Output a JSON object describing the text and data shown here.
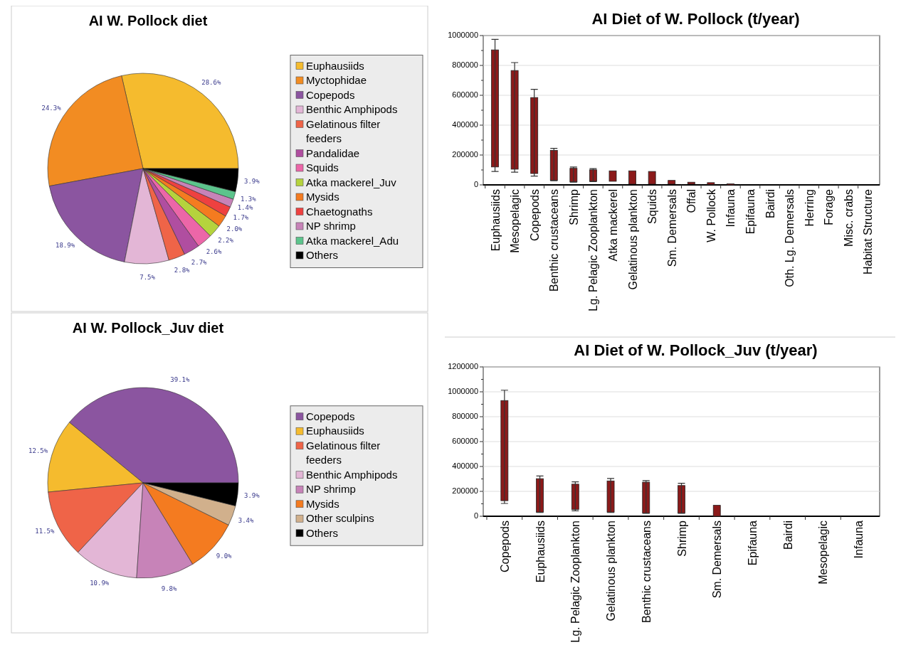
{
  "chart_data": [
    {
      "type": "pie",
      "title": "AI W. Pollock diet",
      "legend": "right",
      "categories": [
        "Euphausiids",
        "Myctophidae",
        "Copepods",
        "Benthic Amphipods",
        "Gelatinous filter feeders",
        "Pandalidae",
        "Squids",
        "Atka mackerel_Juv",
        "Mysids",
        "Chaetognaths",
        "NP shrimp",
        "Atka mackerel_Adu",
        "Others"
      ],
      "values": [
        28.6,
        24.3,
        18.9,
        7.5,
        2.8,
        2.7,
        2.6,
        2.2,
        2.0,
        1.7,
        1.4,
        1.3,
        3.9
      ],
      "value_labels": [
        "28.6%",
        "24.3%",
        "18.9%",
        "7.5%",
        "2.8%",
        "2.7%",
        "2.6%",
        "2.2%",
        "2.0%",
        "1.7%",
        "1.4%",
        "1.3%",
        "3.9%"
      ],
      "colors": [
        "#f5bb2e",
        "#f28c22",
        "#8b55a0",
        "#e3b6d6",
        "#ef6448",
        "#b04ea0",
        "#ec66a8",
        "#b5d33d",
        "#f47b20",
        "#ee4140",
        "#c783b8",
        "#5cc48c",
        "#000000"
      ]
    },
    {
      "type": "bar",
      "title": "AI Diet of W. Pollock (t/year)",
      "grid": "y",
      "color": "#8b1a1a",
      "categories": [
        "Euphausiids",
        "Mesopelagic",
        "Copepods",
        "Benthic crustaceans",
        "Shrimp",
        "Lg. Pelagic Zooplankton",
        "Atka mackerel",
        "Gelatinous plankton",
        "Squids",
        "Sm. Demersals",
        "Offal",
        "W. Pollock",
        "Infauna",
        "Epifauna",
        "Bairdi",
        "Oth. Lg. Demersals",
        "Herring",
        "Forage",
        "Misc. crabs",
        "Habitat Structure"
      ],
      "base": [
        120000,
        105000,
        76000,
        30000,
        20000,
        24000,
        24000,
        5000,
        5000,
        5000,
        5000,
        2000,
        0,
        null,
        null,
        null,
        null,
        null,
        null,
        null
      ],
      "values": [
        784000,
        661000,
        509000,
        201000,
        91000,
        77000,
        70000,
        89000,
        85000,
        25000,
        13000,
        13000,
        7000,
        0,
        0,
        0,
        0,
        0,
        0,
        0
      ],
      "errors": [
        [
          90000,
          974000
        ],
        [
          85000,
          819000
        ],
        [
          59000,
          640000
        ],
        [
          28000,
          245000
        ],
        [
          18000,
          120000
        ],
        [
          22000,
          109000
        ],
        null,
        null,
        null,
        null,
        null,
        null,
        null,
        null,
        null,
        null,
        null,
        null,
        null,
        null
      ],
      "ylim": [
        0,
        1000000
      ],
      "yticks": [
        0,
        {
          "value": 100000,
          "label": null
        },
        200000,
        {
          "value": 300000,
          "label": null
        },
        400000,
        {
          "value": 500000,
          "label": null
        },
        600000,
        {
          "value": 700000,
          "label": null
        },
        800000,
        {
          "value": 900000,
          "label": null
        },
        1000000
      ]
    },
    {
      "type": "pie",
      "title": "AI W. Pollock_Juv diet",
      "legend": "right",
      "categories": [
        "Copepods",
        "Euphausiids",
        "Gelatinous filter feeders",
        "Benthic Amphipods",
        "NP shrimp",
        "Mysids",
        "Other sculpins",
        "Others"
      ],
      "values": [
        39.1,
        12.5,
        11.5,
        10.9,
        9.8,
        9.0,
        3.4,
        3.9
      ],
      "value_labels": [
        "39.1%",
        "12.5%",
        "11.5%",
        "10.9%",
        "9.8%",
        "9.0%",
        "3.4%",
        "3.9%"
      ],
      "colors": [
        "#8b55a0",
        "#f5bb2e",
        "#ef6448",
        "#e3b6d6",
        "#c783b8",
        "#f47b20",
        "#d1b08c",
        "#000000"
      ]
    },
    {
      "type": "bar",
      "title": "AI Diet of W. Pollock_Juv (t/year)",
      "grid": "y",
      "color": "#8b1a1a",
      "categories": [
        "Copepods",
        "Euphausiids",
        "Lg. Pelagic Zooplankton",
        "Gelatinous plankton",
        "Benthic crustaceans",
        "Shrimp",
        "Sm. Demersals",
        "Epifauna",
        "Bairdi",
        "Mesopelagic",
        "Infauna"
      ],
      "base": [
        125000,
        33000,
        55000,
        33000,
        26000,
        26000,
        0,
        null,
        null,
        null,
        null
      ],
      "values": [
        805000,
        269000,
        203000,
        251000,
        248000,
        221000,
        88000,
        0,
        0,
        0,
        0
      ],
      "errors": [
        [
          103000,
          1013000
        ],
        [
          30000,
          324000
        ],
        [
          44000,
          276000
        ],
        [
          30000,
          304000
        ],
        [
          24000,
          286000
        ],
        [
          24000,
          265000
        ],
        null,
        null,
        null,
        null,
        null
      ],
      "ylim": [
        0,
        1200000
      ],
      "yticks": [
        0,
        {
          "value": 100000,
          "label": null
        },
        200000,
        {
          "value": 300000,
          "label": null
        },
        400000,
        {
          "value": 500000,
          "label": null
        },
        600000,
        {
          "value": 700000,
          "label": null
        },
        800000,
        {
          "value": 900000,
          "label": null
        },
        1000000,
        {
          "value": 1100000,
          "label": null
        },
        1200000
      ]
    }
  ]
}
